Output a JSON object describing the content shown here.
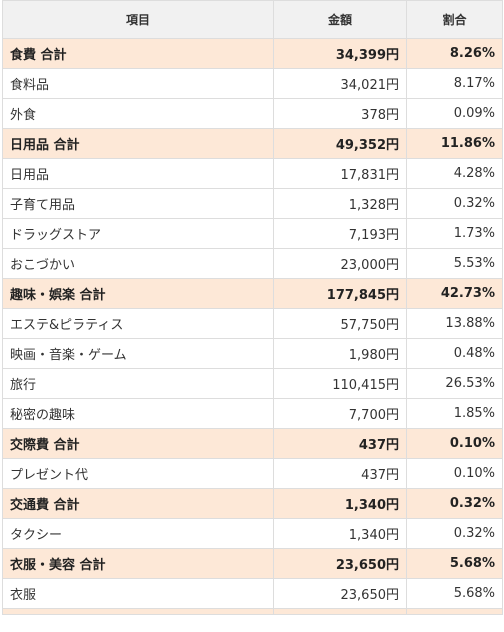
{
  "headers": {
    "item": "項目",
    "amount": "金額",
    "ratio": "割合"
  },
  "rows": [
    {
      "type": "total",
      "name": "食費 合計",
      "amount": "34,399円",
      "ratio": "8.26%"
    },
    {
      "type": "item",
      "name": "食料品",
      "amount": "34,021円",
      "ratio": "8.17%"
    },
    {
      "type": "item",
      "name": "外食",
      "amount": "378円",
      "ratio": "0.09%"
    },
    {
      "type": "total",
      "name": "日用品 合計",
      "amount": "49,352円",
      "ratio": "11.86%"
    },
    {
      "type": "item",
      "name": "日用品",
      "amount": "17,831円",
      "ratio": "4.28%"
    },
    {
      "type": "item",
      "name": "子育て用品",
      "amount": "1,328円",
      "ratio": "0.32%"
    },
    {
      "type": "item",
      "name": "ドラッグストア",
      "amount": "7,193円",
      "ratio": "1.73%"
    },
    {
      "type": "item",
      "name": "おこづかい",
      "amount": "23,000円",
      "ratio": "5.53%"
    },
    {
      "type": "total",
      "name": "趣味・娯楽 合計",
      "amount": "177,845円",
      "ratio": "42.73%"
    },
    {
      "type": "item",
      "name": "エステ&ピラティス",
      "amount": "57,750円",
      "ratio": "13.88%"
    },
    {
      "type": "item",
      "name": "映画・音楽・ゲーム",
      "amount": "1,980円",
      "ratio": "0.48%"
    },
    {
      "type": "item",
      "name": "旅行",
      "amount": "110,415円",
      "ratio": "26.53%"
    },
    {
      "type": "item",
      "name": "秘密の趣味",
      "amount": "7,700円",
      "ratio": "1.85%"
    },
    {
      "type": "total",
      "name": "交際費 合計",
      "amount": "437円",
      "ratio": "0.10%"
    },
    {
      "type": "item",
      "name": "プレゼント代",
      "amount": "437円",
      "ratio": "0.10%"
    },
    {
      "type": "total",
      "name": "交通費 合計",
      "amount": "1,340円",
      "ratio": "0.32%"
    },
    {
      "type": "item",
      "name": "タクシー",
      "amount": "1,340円",
      "ratio": "0.32%"
    },
    {
      "type": "total",
      "name": "衣服・美容 合計",
      "amount": "23,650円",
      "ratio": "5.68%"
    },
    {
      "type": "item",
      "name": "衣服",
      "amount": "23,650円",
      "ratio": "5.68%"
    }
  ]
}
